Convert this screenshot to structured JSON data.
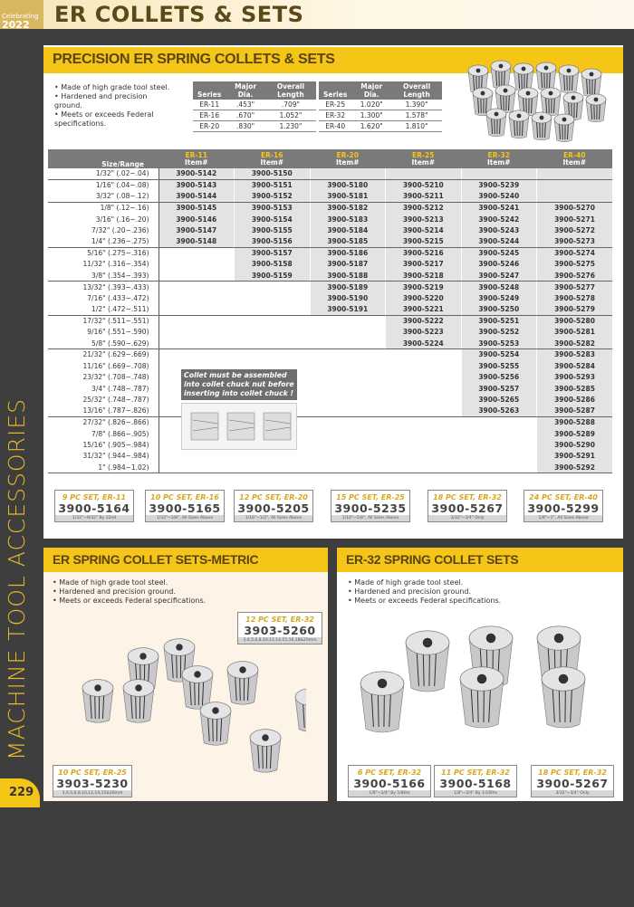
{
  "header": {
    "logo_line1": "Celebrating",
    "logo_line2": "2022",
    "title": "ER COLLETS & SETS"
  },
  "side_label": "MACHINE TOOL ACCESSORIES",
  "page_number": "229",
  "precision": {
    "title": "PRECISION ER SPRING COLLETS & SETS",
    "bullets": [
      "Made of high grade tool steel.",
      "Hardened and precision ground.",
      "Meets or exceeds Federal specifications."
    ],
    "spec_headers": [
      "Series",
      "Major Dia.",
      "Overall Length"
    ],
    "spec_left": [
      [
        "ER-11",
        ".453\"",
        ".709\""
      ],
      [
        "ER-16",
        ".670\"",
        "1.052\""
      ],
      [
        "ER-20",
        ".830\"",
        "1.230\""
      ]
    ],
    "spec_right": [
      [
        "ER-25",
        "1.020\"",
        "1.390\""
      ],
      [
        "ER-32",
        "1.300\"",
        "1.578\""
      ],
      [
        "ER-40",
        "1.620\"",
        "1.810\""
      ]
    ],
    "table": {
      "size_header": "Size/Range",
      "columns": [
        {
          "series": "ER-11",
          "sub": "Item#"
        },
        {
          "series": "ER-16",
          "sub": "Item#"
        },
        {
          "series": "ER-20",
          "sub": "Item#"
        },
        {
          "series": "ER-25",
          "sub": "Item#"
        },
        {
          "series": "ER-32",
          "sub": "Item#"
        },
        {
          "series": "ER-40",
          "sub": "Item#"
        }
      ],
      "rows": [
        [
          "1/32\" (.02~.04)",
          "3900-5142",
          "3900-5150",
          "",
          "",
          "",
          ""
        ],
        [
          "1/16\" (.04~.08)",
          "3900-5143",
          "3900-5151",
          "3900-5180",
          "3900-5210",
          "3900-5239",
          ""
        ],
        [
          "3/32\" (.08~.12)",
          "3900-5144",
          "3900-5152",
          "3900-5181",
          "3900-5211",
          "3900-5240",
          ""
        ],
        [
          "1/8\" (.12~.16)",
          "3900-5145",
          "3900-5153",
          "3900-5182",
          "3900-5212",
          "3900-5241",
          "3900-5270"
        ],
        [
          "3/16\" (.16~.20)",
          "3900-5146",
          "3900-5154",
          "3900-5183",
          "3900-5213",
          "3900-5242",
          "3900-5271"
        ],
        [
          "7/32\" (.20~.236)",
          "3900-5147",
          "3900-5155",
          "3900-5184",
          "3900-5214",
          "3900-5243",
          "3900-5272"
        ],
        [
          "1/4\" (.236~.275)",
          "3900-5148",
          "3900-5156",
          "3900-5185",
          "3900-5215",
          "3900-5244",
          "3900-5273"
        ],
        [
          "5/16\" (.275~.316)",
          null,
          "3900-5157",
          "3900-5186",
          "3900-5216",
          "3900-5245",
          "3900-5274"
        ],
        [
          "11/32\" (.316~.354)",
          null,
          "3900-5158",
          "3900-5187",
          "3900-5217",
          "3900-5246",
          "3900-5275"
        ],
        [
          "3/8\" (.354~.393)",
          null,
          "3900-5159",
          "3900-5188",
          "3900-5218",
          "3900-5247",
          "3900-5276"
        ],
        [
          "13/32\" (.393~.433)",
          null,
          null,
          "3900-5189",
          "3900-5219",
          "3900-5248",
          "3900-5277"
        ],
        [
          "7/16\" (.433~.472)",
          null,
          null,
          "3900-5190",
          "3900-5220",
          "3900-5249",
          "3900-5278"
        ],
        [
          "1/2\" (.472~.511)",
          null,
          null,
          "3900-5191",
          "3900-5221",
          "3900-5250",
          "3900-5279"
        ],
        [
          "17/32\" (.511~.551)",
          null,
          null,
          null,
          "3900-5222",
          "3900-5251",
          "3900-5280"
        ],
        [
          "9/16\" (.551~.590)",
          null,
          null,
          null,
          "3900-5223",
          "3900-5252",
          "3900-5281"
        ],
        [
          "5/8\" (.590~.629)",
          null,
          null,
          null,
          "3900-5224",
          "3900-5253",
          "3900-5282"
        ],
        [
          "21/32\" (.629~.669)",
          null,
          null,
          null,
          null,
          "3900-5254",
          "3900-5283"
        ],
        [
          "11/16\" (.669~.708)",
          null,
          null,
          null,
          null,
          "3900-5255",
          "3900-5284"
        ],
        [
          "23/32\" (.708~.748)",
          null,
          null,
          null,
          null,
          "3900-5256",
          "3900-5293"
        ],
        [
          "3/4\" (.748~.787)",
          null,
          null,
          null,
          null,
          "3900-5257",
          "3900-5285"
        ],
        [
          "25/32\" (.748~.787)",
          null,
          null,
          null,
          null,
          "3900-5265",
          "3900-5286"
        ],
        [
          "13/16\" (.787~.826)",
          null,
          null,
          null,
          null,
          "3900-5263",
          "3900-5287"
        ],
        [
          "27/32\" (.826~.866)",
          null,
          null,
          null,
          null,
          null,
          "3900-5288"
        ],
        [
          "7/8\" (.866~.905)",
          null,
          null,
          null,
          null,
          null,
          "3900-5289"
        ],
        [
          "15/16\" (.905~.984)",
          null,
          null,
          null,
          null,
          null,
          "3900-5290"
        ],
        [
          "31/32\" (.944~.984)",
          null,
          null,
          null,
          null,
          null,
          "3900-5291"
        ],
        [
          "1\" (.984~1.02)",
          null,
          null,
          null,
          null,
          null,
          "3900-5292"
        ]
      ]
    },
    "note": "Collet must be assembled into collet chuck nut before inserting into collet chuck !",
    "sets": [
      {
        "name": "9 PC SET, ER-11",
        "code": "3900-5164",
        "range": "1/32\"~9/32\" By 32nd"
      },
      {
        "name": "10 PC SET, ER-16",
        "code": "3900-5165",
        "range": "1/32\"~3/8\", All Sizes Above"
      },
      {
        "name": "12 PC SET, ER-20",
        "code": "3900-5205",
        "range": "1/16\"~1/2\", All Sizes Above"
      },
      {
        "name": "15 PC SET, ER-25",
        "code": "3900-5235",
        "range": "1/16\"~5/8\", All Sizes Above"
      },
      {
        "name": "18 PC SET, ER-32",
        "code": "3900-5267",
        "range": "3/32\"~3/4\" Only"
      },
      {
        "name": "24 PC SET, ER-40",
        "code": "3900-5299",
        "range": "1/8\"~1\", All Sizes Above"
      }
    ]
  },
  "metric": {
    "title": "ER SPRING COLLET SETS-METRIC",
    "bullets": [
      "Made of high grade tool steel.",
      "Hardened and precision ground.",
      "Meets or exceeds Federal specifications."
    ],
    "sets": [
      {
        "name": "12 PC SET, ER-32",
        "code": "3903-5260",
        "range": "3,4,5,6,8,10,12,14,15,16,18&20mm"
      },
      {
        "name": "10 PC SET, ER-25",
        "code": "3903-5230",
        "range": "3,4,5,6,8,10,12,14,15&16mm"
      }
    ]
  },
  "er32": {
    "title": "ER-32 SPRING COLLET SETS",
    "bullets": [
      "Made of high grade tool steel.",
      "Hardened and precision ground.",
      "Meets or exceeds Federal specifications."
    ],
    "sets": [
      {
        "name": "6 PC SET, ER-32",
        "code": "3900-5166",
        "range": "1/8\"~3/4\" By 1/8ths"
      },
      {
        "name": "11 PC SET, ER-32",
        "code": "3900-5168",
        "range": "1/8\"~3/4\" By 1/16ths"
      },
      {
        "name": "18 PC SET, ER-32",
        "code": "3900-5267",
        "range": "3/32\"~3/4\" Only"
      }
    ]
  }
}
